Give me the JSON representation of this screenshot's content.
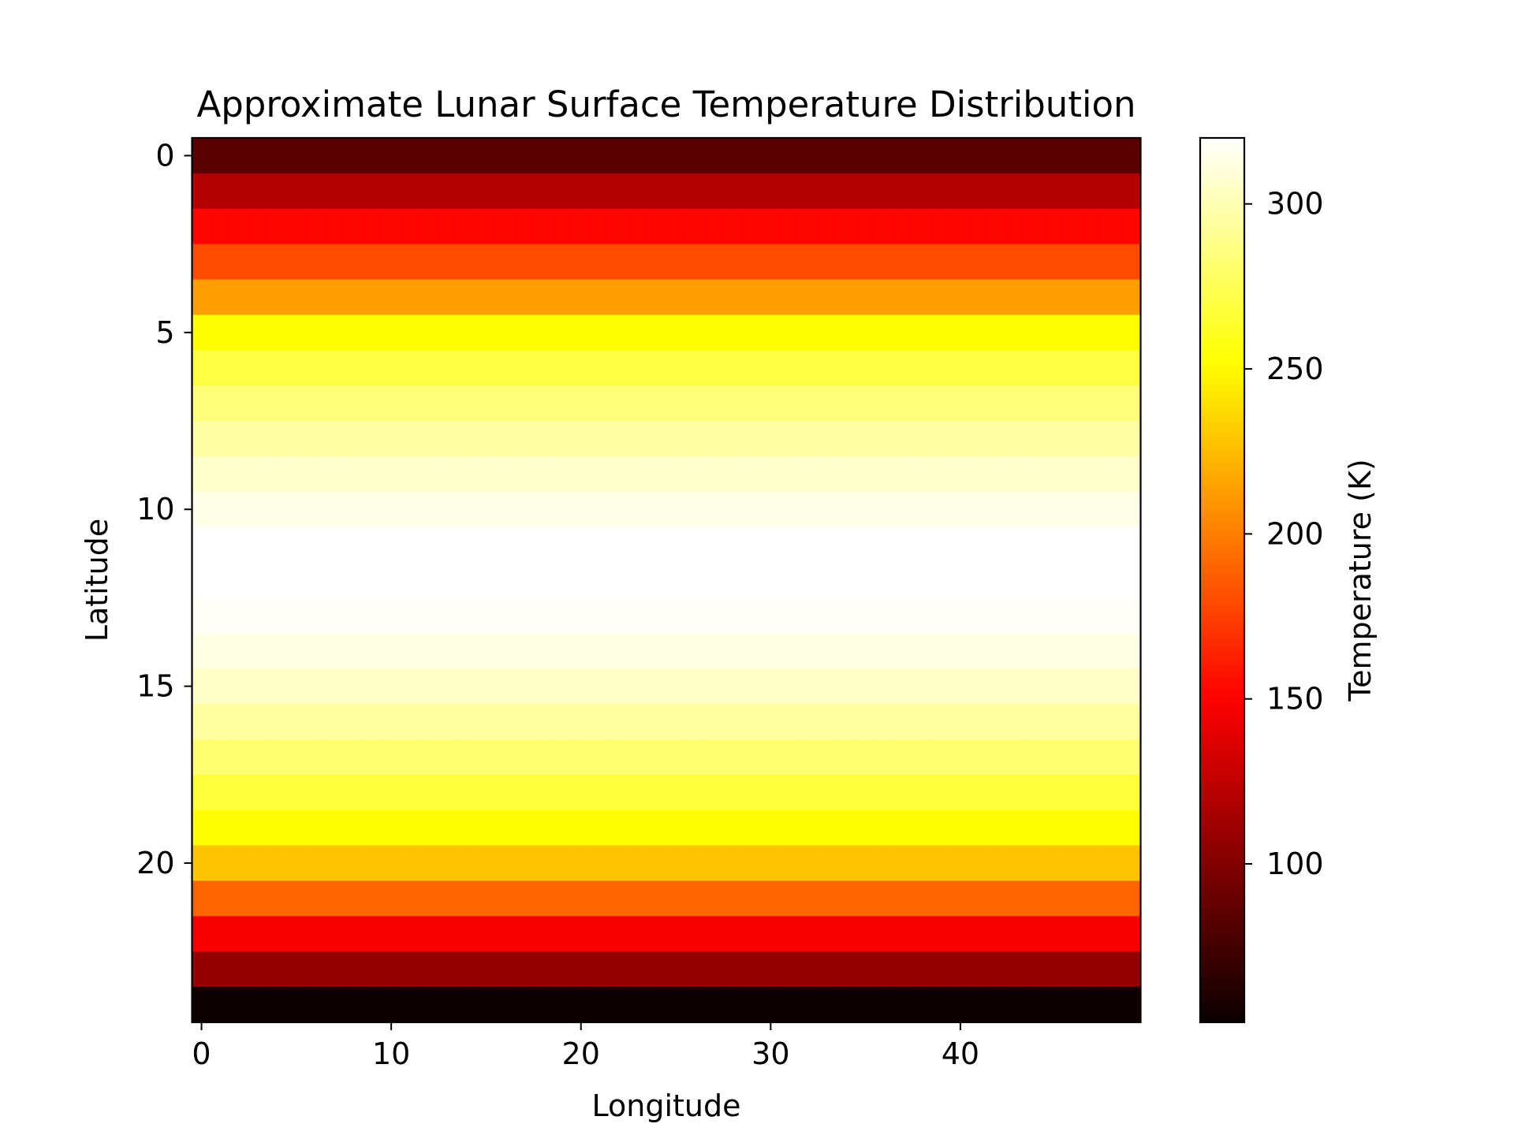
{
  "chart_data": {
    "type": "heatmap",
    "title": "Approximate Lunar Surface Temperature Distribution",
    "xlabel": "Longitude",
    "ylabel": "Latitude",
    "xlim": [
      -0.5,
      49.5
    ],
    "ylim": [
      24.5,
      -0.5
    ],
    "x_ticks": [
      0,
      10,
      20,
      30,
      40
    ],
    "y_ticks": [
      0,
      5,
      10,
      15,
      20
    ],
    "n_cols": 50,
    "row_values": [
      84,
      119,
      152,
      180,
      213,
      251,
      270,
      284,
      296,
      306,
      314,
      320,
      320,
      318,
      313,
      305,
      295,
      282,
      268,
      251,
      228,
      190,
      147,
      107,
      53
    ],
    "colormap": "hot",
    "colorbar": {
      "label": "Temperature (K)",
      "min": 52,
      "max": 320,
      "ticks": [
        100,
        150,
        200,
        250,
        300
      ]
    },
    "grid": false,
    "legend": "none"
  }
}
